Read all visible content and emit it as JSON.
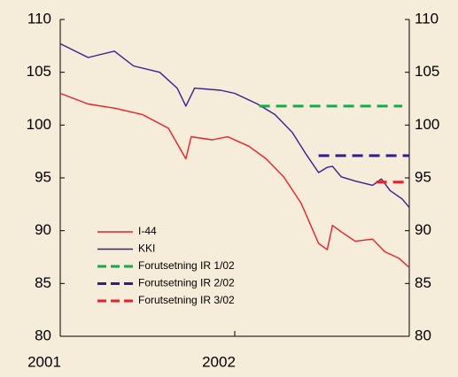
{
  "chart_data": {
    "type": "line",
    "xlim": [
      2001,
      2003
    ],
    "xticks": [
      2001,
      2002
    ],
    "ylim": [
      80,
      110
    ],
    "yticks": [
      80,
      85,
      90,
      95,
      100,
      105,
      110
    ],
    "y2lim": [
      80,
      110
    ],
    "y2ticks": [
      80,
      85,
      90,
      95,
      100,
      105,
      110
    ],
    "legend": "lower left",
    "series": [
      {
        "name": "I-44",
        "color": "#e8202a",
        "dashed": false,
        "x": [
          2001.0,
          2001.16,
          2001.31,
          2001.47,
          2001.62,
          2001.72,
          2001.75,
          2001.87,
          2001.96,
          2002.08,
          2002.18,
          2002.28,
          2002.38,
          2002.48,
          2002.53,
          2002.56,
          2002.61,
          2002.69,
          2002.79,
          2002.86,
          2002.94,
          2003.0
        ],
        "values": [
          103,
          102,
          101.6,
          101,
          99.7,
          96.8,
          98.9,
          98.6,
          98.9,
          98,
          96.8,
          95.1,
          92.6,
          88.8,
          88.2,
          90.5,
          89.9,
          89,
          89.2,
          88,
          87.4,
          86.5
        ]
      },
      {
        "name": "KKI",
        "color": "#3a1f8c",
        "dashed": false,
        "x": [
          2001.0,
          2001.16,
          2001.31,
          2001.42,
          2001.57,
          2001.67,
          2001.72,
          2001.77,
          2001.92,
          2002.0,
          2002.13,
          2002.23,
          2002.33,
          2002.41,
          2002.48,
          2002.53,
          2002.56,
          2002.61,
          2002.69,
          2002.79,
          2002.84,
          2002.89,
          2002.96,
          2003.0
        ],
        "values": [
          107.7,
          106.4,
          107,
          105.6,
          105,
          103.5,
          101.8,
          103.5,
          103.3,
          103,
          102,
          101,
          99.3,
          97.2,
          95.5,
          96,
          96.1,
          95.1,
          94.7,
          94.3,
          94.9,
          93.8,
          93,
          92.2
        ]
      },
      {
        "name": "Forutsetning IR 1/02",
        "color": "#1aa84a",
        "dashed": true,
        "x": [
          2002.14,
          2002.96
        ],
        "values": [
          101.8,
          101.8
        ]
      },
      {
        "name": "Forutsetning IR 2/02",
        "color": "#2e1f8c",
        "dashed": true,
        "x": [
          2002.48,
          2003.0
        ],
        "values": [
          97.1,
          97.1
        ]
      },
      {
        "name": "Forutsetning IR 3/02",
        "color": "#e8202a",
        "dashed": true,
        "x": [
          2002.81,
          2003.0
        ],
        "values": [
          94.6,
          94.6
        ]
      }
    ]
  }
}
